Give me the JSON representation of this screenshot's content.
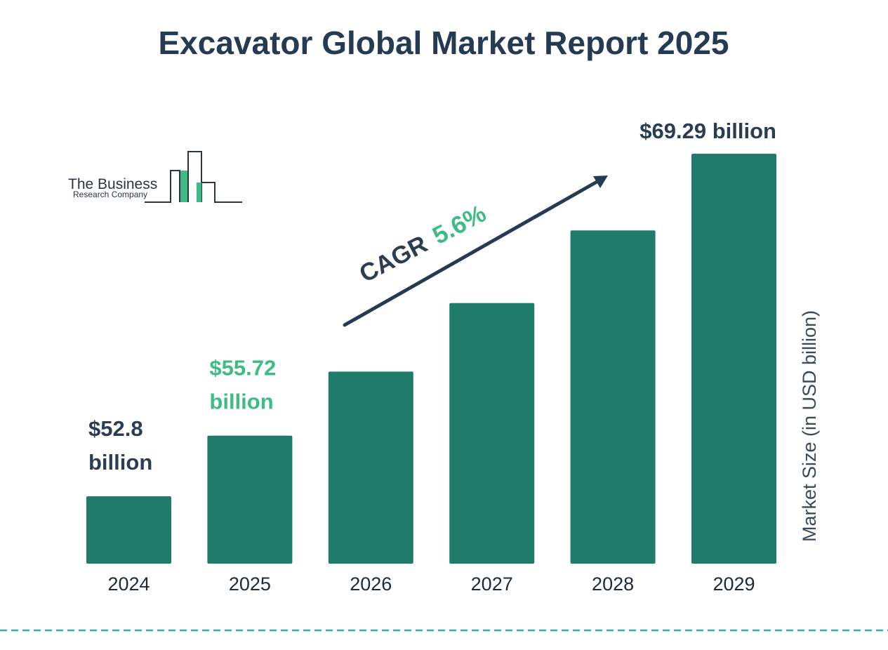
{
  "colors": {
    "bar": "#217b6a",
    "title": "#243b53",
    "label_dark": "#2b3d52",
    "label_green": "#3dbd85",
    "divider": "#3aaea1"
  },
  "logo": {
    "line1": "The Business",
    "line2": "Research Company"
  },
  "cagr": {
    "label": "CAGR",
    "value": "5.6%"
  },
  "chart_data": {
    "type": "bar",
    "title": "Excavator Global Market Report 2025",
    "ylabel": "Market Size (in USD billion)",
    "categories": [
      "2024",
      "2025",
      "2026",
      "2027",
      "2028",
      "2029"
    ],
    "values": [
      52.8,
      55.72,
      58.8,
      62.1,
      65.6,
      69.29
    ],
    "data_labels": [
      {
        "index": 0,
        "lines": [
          "$52.8",
          "billion"
        ],
        "style": "dark"
      },
      {
        "index": 1,
        "lines": [
          "$55.72",
          "billion"
        ],
        "style": "green"
      },
      {
        "index": 5,
        "lines": [
          "$69.29 billion"
        ],
        "style": "dark"
      }
    ],
    "grid": false,
    "legend": "none"
  }
}
